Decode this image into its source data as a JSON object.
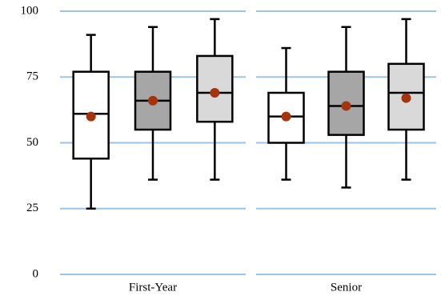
{
  "chart_data": {
    "type": "box",
    "categories": [
      "First-Year",
      "Senior"
    ],
    "ylim": [
      0,
      100
    ],
    "yticks": [
      0,
      25,
      50,
      75,
      100
    ],
    "grid": true,
    "mean_color": "#a5330c",
    "series": [
      {
        "color": "#ffffff",
        "min": [
          25,
          36
        ],
        "q1": [
          44,
          50
        ],
        "median": [
          61,
          60
        ],
        "q3": [
          77,
          69
        ],
        "max": [
          91,
          86
        ],
        "mean": [
          60,
          60
        ]
      },
      {
        "color": "#a6a6a6",
        "min": [
          36,
          33
        ],
        "q1": [
          55,
          53
        ],
        "median": [
          66,
          64
        ],
        "q3": [
          77,
          77
        ],
        "max": [
          94,
          94
        ],
        "mean": [
          66,
          64
        ]
      },
      {
        "color": "#d9d9d9",
        "min": [
          36,
          36
        ],
        "q1": [
          58,
          55
        ],
        "median": [
          69,
          69
        ],
        "q3": [
          83,
          80
        ],
        "max": [
          97,
          97
        ],
        "mean": [
          69,
          67
        ]
      }
    ]
  }
}
